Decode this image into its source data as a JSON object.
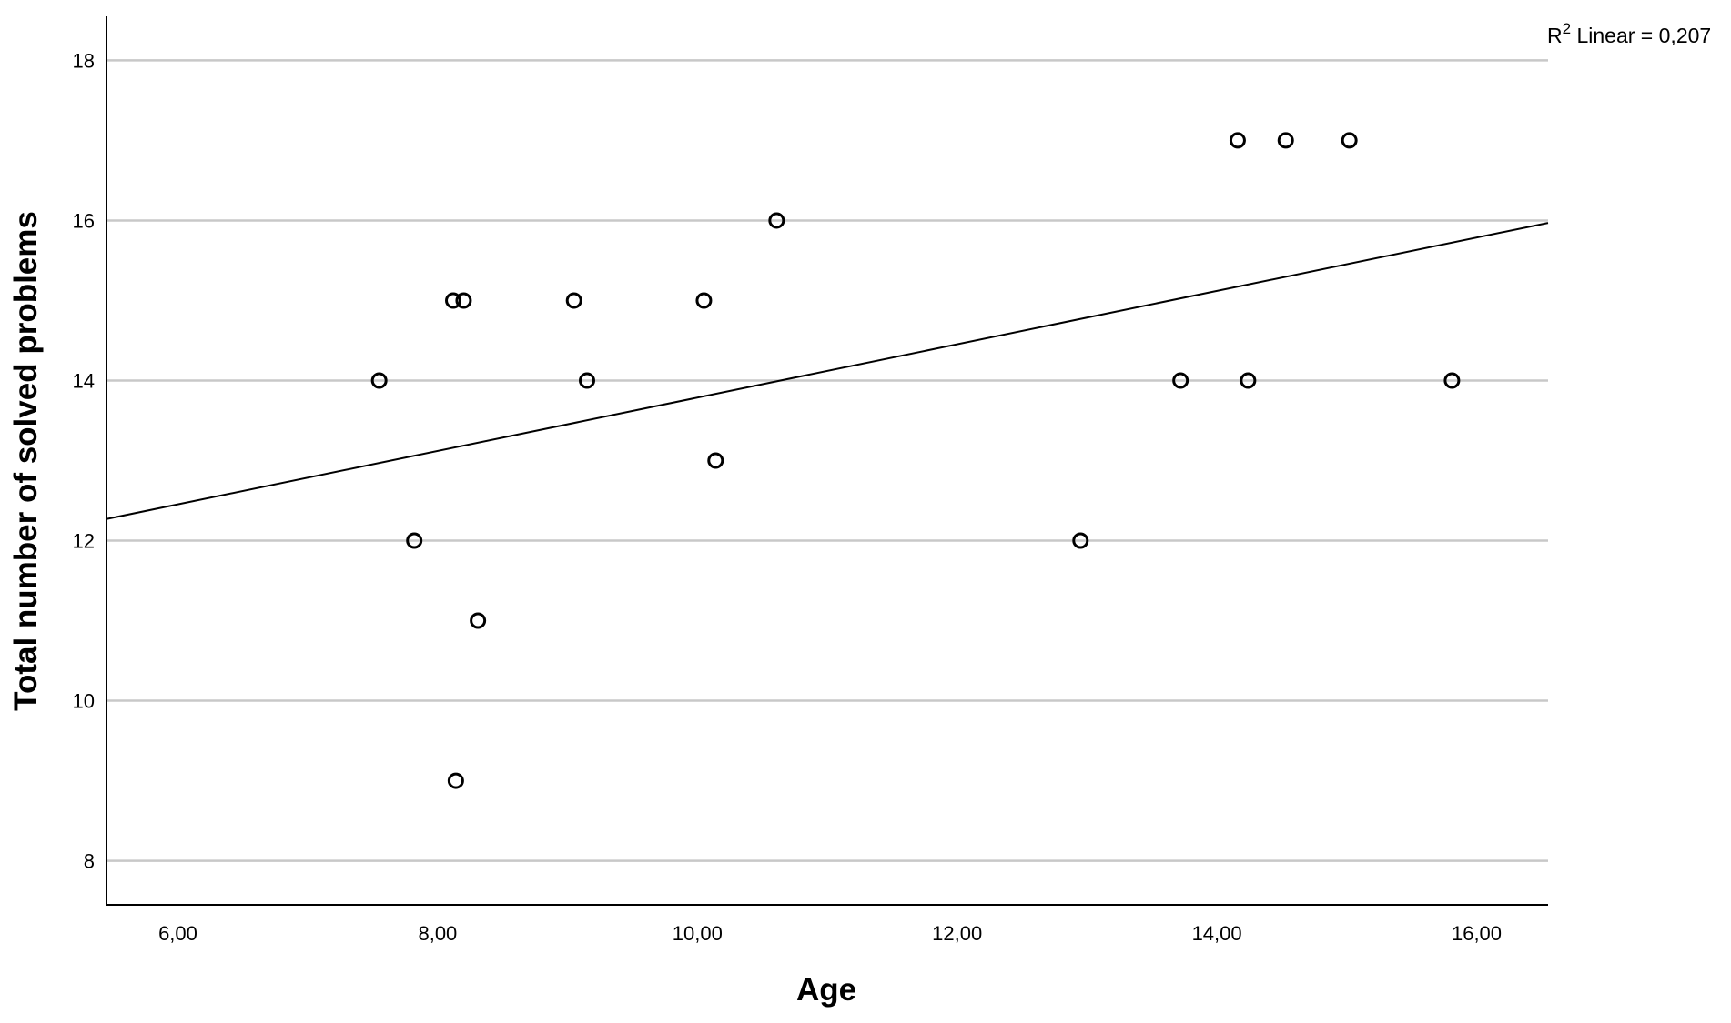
{
  "chart_data": {
    "type": "scatter",
    "xlabel": "Age",
    "ylabel": "Total number of solved problems",
    "xlim": [
      5.45,
      16.55
    ],
    "ylim": [
      7.45,
      18.55
    ],
    "x_ticks": [
      6,
      8,
      10,
      12,
      14,
      16
    ],
    "x_tick_labels": [
      "6,00",
      "8,00",
      "10,00",
      "12,00",
      "14,00",
      "16,00"
    ],
    "y_ticks": [
      8,
      10,
      12,
      14,
      16,
      18
    ],
    "y_tick_labels": [
      "8",
      "10",
      "12",
      "14",
      "16",
      "18"
    ],
    "grid": "horizontal",
    "points": [
      {
        "x": 7.55,
        "y": 14
      },
      {
        "x": 7.82,
        "y": 12
      },
      {
        "x": 8.12,
        "y": 15
      },
      {
        "x": 8.2,
        "y": 15
      },
      {
        "x": 8.14,
        "y": 9
      },
      {
        "x": 8.31,
        "y": 11
      },
      {
        "x": 9.05,
        "y": 15
      },
      {
        "x": 9.15,
        "y": 14
      },
      {
        "x": 10.05,
        "y": 15
      },
      {
        "x": 10.14,
        "y": 13
      },
      {
        "x": 10.61,
        "y": 16
      },
      {
        "x": 12.95,
        "y": 12
      },
      {
        "x": 13.72,
        "y": 14
      },
      {
        "x": 14.16,
        "y": 17
      },
      {
        "x": 14.24,
        "y": 14
      },
      {
        "x": 14.53,
        "y": 17
      },
      {
        "x": 15.02,
        "y": 17
      },
      {
        "x": 15.81,
        "y": 14
      }
    ],
    "fit_line": {
      "x": [
        5.45,
        16.55
      ],
      "y": [
        12.27,
        15.97
      ]
    },
    "annotation": {
      "base": "R",
      "sup": "2",
      "text": " Linear = 0,207"
    }
  }
}
